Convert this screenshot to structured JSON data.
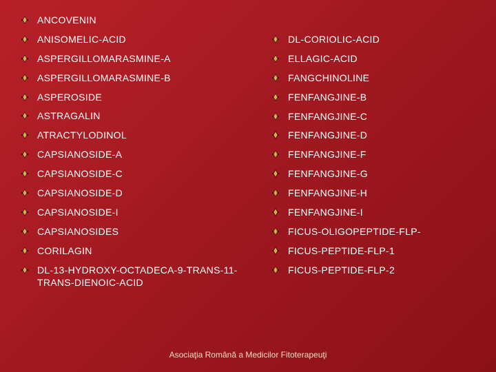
{
  "background_gradient": [
    "#b82028",
    "#a01820",
    "#8a1018"
  ],
  "text_color": "#ffffff",
  "footer_color": "#f0e0c0",
  "bullet": {
    "fill": "#d4b050",
    "stroke": "#3a1010",
    "size": 12
  },
  "font_family": "Verdana, Geneva, sans-serif",
  "item_fontsize": 14,
  "footer_fontsize": 12,
  "columns": {
    "left": [
      "ANCOVENIN",
      "ANISOMELIC-ACID",
      "ASPERGILLOMARASMINE-A",
      "ASPERGILLOMARASMINE-B",
      "ASPEROSIDE",
      "ASTRAGALIN",
      "ATRACTYLODINOL",
      "CAPSIANOSIDE-A",
      "CAPSIANOSIDE-C",
      "CAPSIANOSIDE-D",
      "CAPSIANOSIDE-I",
      "CAPSIANOSIDES",
      "CORILAGIN",
      "DL-13-HYDROXY-OCTADECA-9-TRANS-11-TRANS-DIENOIC-ACID"
    ],
    "right": [
      "DL-CORIOLIC-ACID",
      "ELLAGIC-ACID",
      "FANGCHINOLINE",
      "FENFANGJINE-B",
      "FENFANGJINE-C",
      "FENFANGJINE-D",
      "FENFANGJINE-F",
      "FENFANGJINE-G",
      "FENFANGJINE-H",
      "FENFANGJINE-I",
      "FICUS-OLIGOPEPTIDE-FLP-",
      "FICUS-PEPTIDE-FLP-1",
      "FICUS-PEPTIDE-FLP-2"
    ]
  },
  "footer": "Asociaţia Română a Medicilor Fitoterapeuţi"
}
